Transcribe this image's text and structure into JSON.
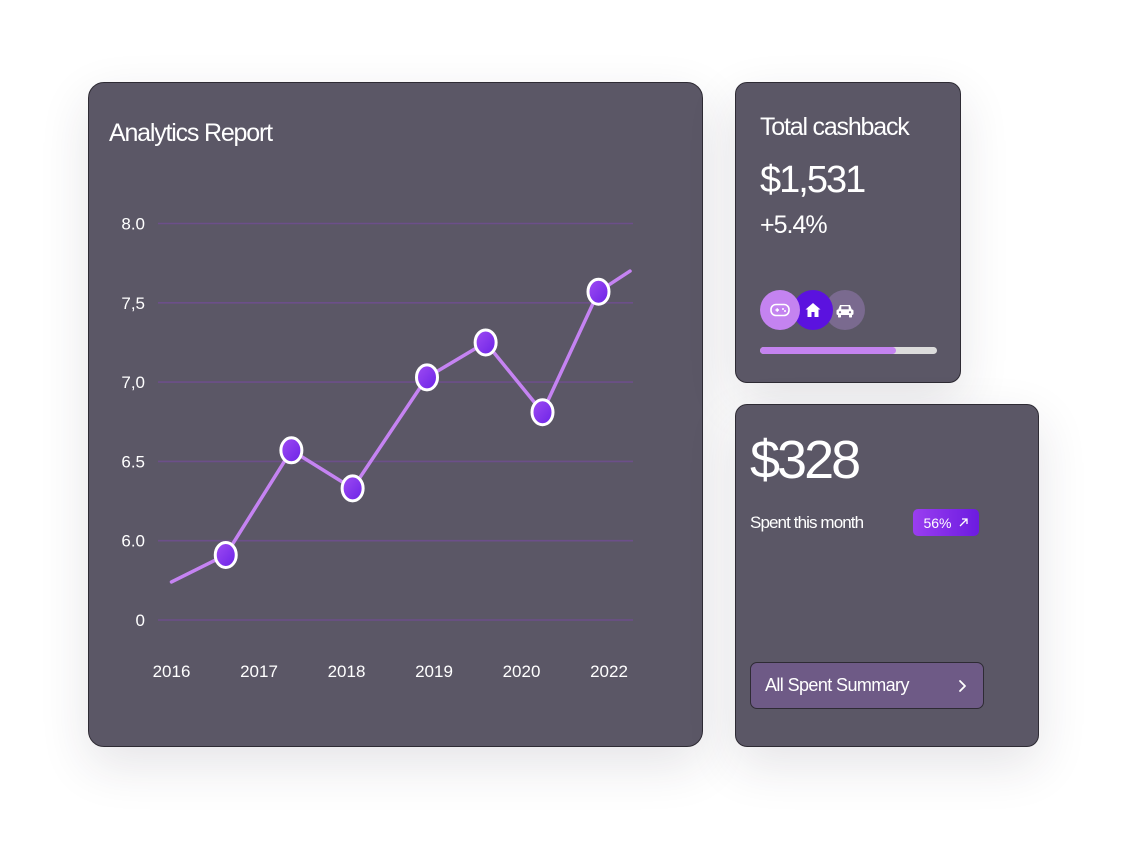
{
  "analytics": {
    "title": "Analytics Report"
  },
  "chart_data": {
    "type": "line",
    "title": "Analytics Report",
    "x_labels": [
      "2016",
      "2017",
      "2018",
      "2019",
      "2020",
      "2022"
    ],
    "y_labels": [
      "0",
      "6.0",
      "6.5",
      "7,0",
      "7,5",
      "8.0"
    ],
    "grid": true,
    "line_color": "#c583f2",
    "marker_color": "#7c2ff0",
    "series": [
      {
        "x": [
          2016,
          2016.62,
          2017.37,
          2018.07,
          2018.92,
          2019.59,
          2020.24,
          2020.88,
          2021.24
        ],
        "y": [
          5.74,
          5.91,
          6.57,
          6.33,
          7.03,
          7.25,
          6.81,
          7.57,
          7.7
        ],
        "markers": [
          false,
          true,
          true,
          true,
          true,
          true,
          true,
          true,
          false
        ]
      }
    ]
  },
  "cashback": {
    "title": "Total cashback",
    "amount": "$1,531",
    "change": "+5.4%",
    "icons": [
      "gamepad-icon",
      "home-icon",
      "car-icon"
    ],
    "icon_colors": [
      "#c483f0",
      "#5b12df",
      "#7a6a8f"
    ],
    "progress": 0.77
  },
  "spent": {
    "amount": "$328",
    "label": "Spent this month",
    "badge": "56%",
    "badge_icon": "arrow-up-right-icon",
    "button_label": "All Spent Summary",
    "button_icon": "chevron-right-icon"
  }
}
